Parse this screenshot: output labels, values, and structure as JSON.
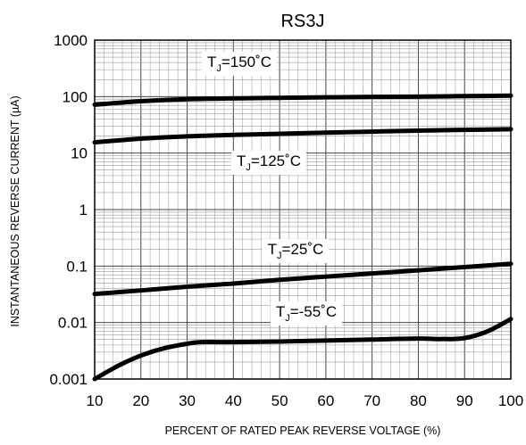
{
  "chart_data": {
    "type": "line",
    "title": "RS3J",
    "xlabel": "PERCENT OF RATED PEAK REVERSE VOLTAGE (%)",
    "ylabel": "INSTANTANEOUS REVERSE CURRENT (µA)",
    "xlim": [
      10,
      100
    ],
    "ylim": [
      0.001,
      1000
    ],
    "yscale": "log",
    "grid": true,
    "x_ticks": [
      "10",
      "20",
      "30",
      "40",
      "50",
      "60",
      "70",
      "80",
      "90",
      "100"
    ],
    "y_ticks": [
      "0.001",
      "0.01",
      "0.1",
      "1",
      "10",
      "100",
      "1000"
    ],
    "series": [
      {
        "name": "TJ=150°C",
        "label_main": "T",
        "label_sub": "J",
        "label_rest": "=150˚C",
        "points": [
          [
            10,
            72
          ],
          [
            20,
            83
          ],
          [
            30,
            90
          ],
          [
            40,
            93
          ],
          [
            50,
            95
          ],
          [
            60,
            97
          ],
          [
            70,
            99
          ],
          [
            80,
            100
          ],
          [
            90,
            102
          ],
          [
            100,
            104
          ]
        ]
      },
      {
        "name": "TJ=125°C",
        "label_main": "T",
        "label_sub": "J",
        "label_rest": "=125˚C",
        "points": [
          [
            10,
            15.5
          ],
          [
            20,
            18
          ],
          [
            30,
            19.8
          ],
          [
            40,
            21
          ],
          [
            50,
            22
          ],
          [
            60,
            23
          ],
          [
            70,
            24
          ],
          [
            80,
            25
          ],
          [
            90,
            25.8
          ],
          [
            100,
            26.5
          ]
        ]
      },
      {
        "name": "TJ=25°C",
        "label_main": "T",
        "label_sub": "J",
        "label_rest": "=25˚C",
        "points": [
          [
            10,
            0.032
          ],
          [
            20,
            0.037
          ],
          [
            30,
            0.043
          ],
          [
            40,
            0.049
          ],
          [
            50,
            0.057
          ],
          [
            60,
            0.065
          ],
          [
            70,
            0.074
          ],
          [
            80,
            0.084
          ],
          [
            90,
            0.096
          ],
          [
            100,
            0.11
          ]
        ]
      },
      {
        "name": "TJ=-55°C",
        "label_main": "T",
        "label_sub": "J",
        "label_rest": "=-55˚C",
        "points": [
          [
            10,
            0.001
          ],
          [
            15,
            0.0017
          ],
          [
            20,
            0.0026
          ],
          [
            25,
            0.0035
          ],
          [
            30,
            0.0042
          ],
          [
            33,
            0.0045
          ],
          [
            40,
            0.0045
          ],
          [
            50,
            0.0046
          ],
          [
            60,
            0.0048
          ],
          [
            70,
            0.005
          ],
          [
            80,
            0.0052
          ],
          [
            85,
            0.0051
          ],
          [
            90,
            0.0053
          ],
          [
            95,
            0.007
          ],
          [
            100,
            0.0115
          ]
        ]
      }
    ]
  }
}
